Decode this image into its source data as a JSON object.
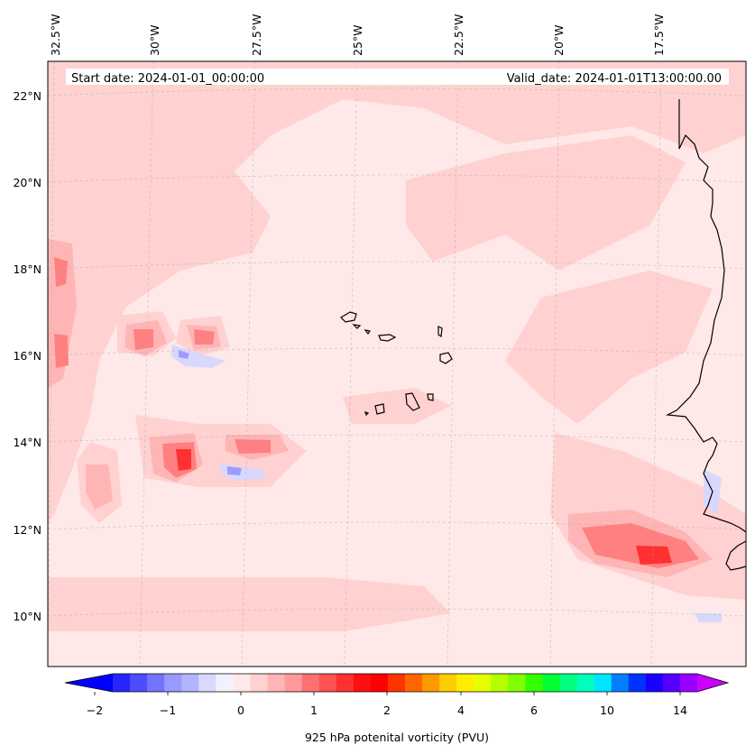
{
  "map": {
    "start_date": "Start date: 2024-01-01_00:00:00",
    "valid_date": "Valid_date: 2024-01-01T13:00:00.00",
    "lon_labels": [
      "32.5°W",
      "30°W",
      "27.5°W",
      "25°W",
      "22.5°W",
      "20°W",
      "17.5°W"
    ],
    "lat_labels": [
      "22°N",
      "20°N",
      "18°N",
      "16°N",
      "14°N",
      "12°N",
      "10°N"
    ],
    "field_colors": {
      "background": "#ffe8e8",
      "low_positive": "#ffd1d1",
      "mid_positive": "#ffb5b5",
      "high_positive": "#ff8080",
      "peak_positive": "#ff3030",
      "negative": "#d8d8ff",
      "strong_negative": "#9c9cff"
    }
  },
  "colorbar": {
    "title": "925 hPa potenital vorticity (PVU)",
    "tick_labels": [
      "−2",
      "−1",
      "0",
      "1",
      "2",
      "4",
      "6",
      "10",
      "14"
    ],
    "colors": [
      "#0000ff",
      "#2626ff",
      "#4d4dff",
      "#7373ff",
      "#9999ff",
      "#b3b3ff",
      "#d9d9ff",
      "#f2f2ff",
      "#ffe8e8",
      "#ffd1d1",
      "#ffb5b5",
      "#ff9a9a",
      "#ff7070",
      "#ff5252",
      "#ff3030",
      "#ff1010",
      "#ff0000",
      "#ff3300",
      "#ff6600",
      "#ff9900",
      "#ffcc00",
      "#ffee00",
      "#e6ff00",
      "#b3ff00",
      "#80ff00",
      "#33ff00",
      "#00ff33",
      "#00ff80",
      "#00ffbb",
      "#00e5ff",
      "#0080ff",
      "#0033ff",
      "#1a00ff",
      "#5500ff",
      "#9900ff",
      "#cc00ff"
    ]
  }
}
